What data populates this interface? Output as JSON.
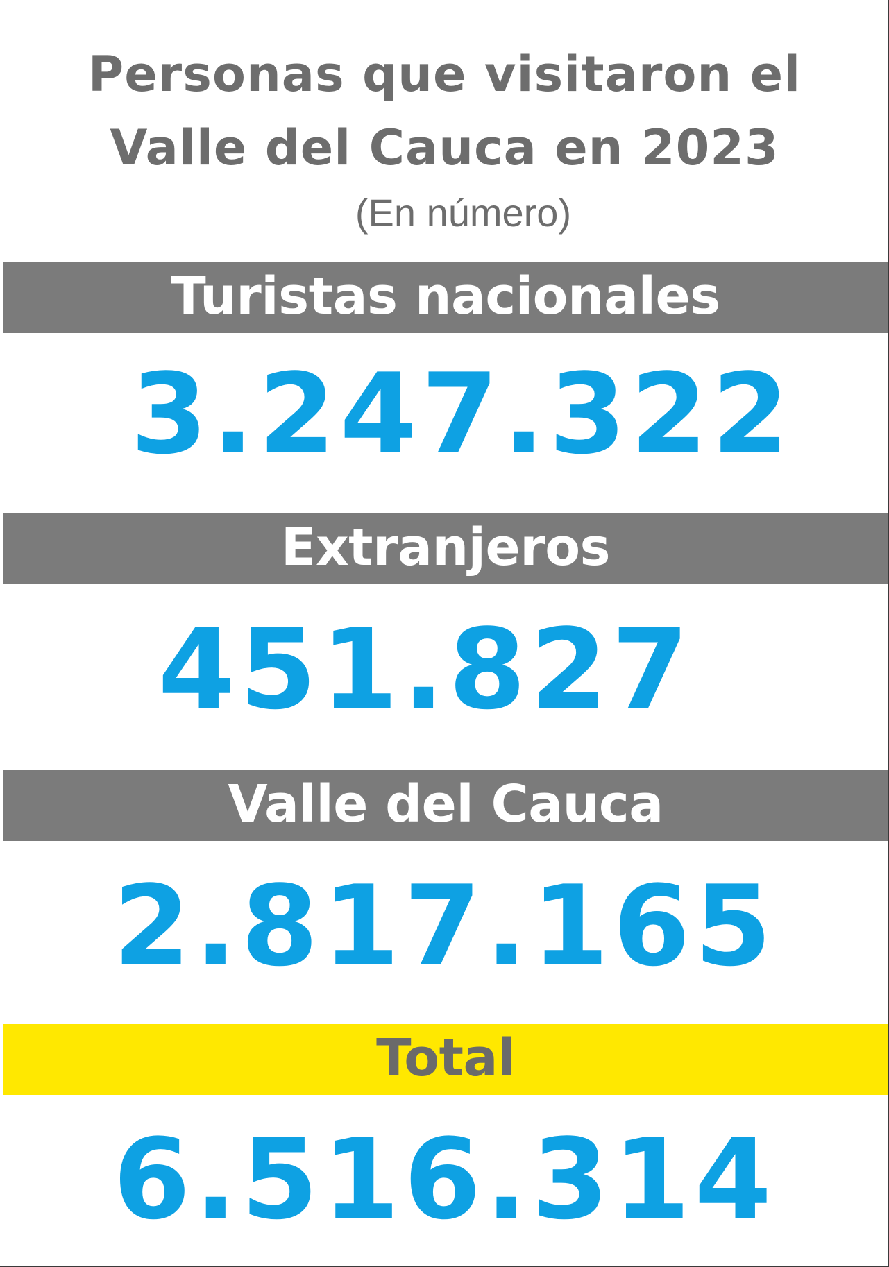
{
  "title": {
    "line1": "Personas que visitaron el",
    "line2": "Valle del Cauca en 2023",
    "subtitle": "(En número)"
  },
  "sections": [
    {
      "label": "Turistas nacionales",
      "value": "3.247.322"
    },
    {
      "label": "Extranjeros",
      "value": "451.827"
    },
    {
      "label": "Valle del Cauca",
      "value": "2.817.165"
    },
    {
      "label": "Total",
      "value": "6.516.314"
    }
  ],
  "colors": {
    "band_gray": "#7b7b7b",
    "band_total": "#ffe800",
    "value_blue": "#0ea1e3",
    "title_gray": "#6d6d6d"
  }
}
